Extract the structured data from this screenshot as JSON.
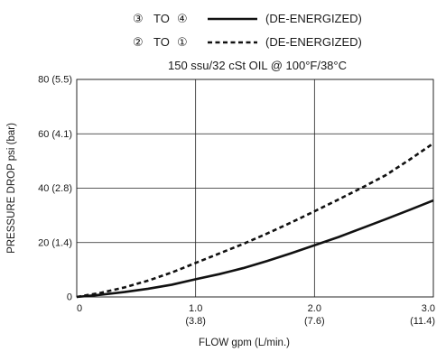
{
  "chart_data": {
    "type": "line",
    "title": "",
    "subtitle": "150 ssu/32 cSt OIL @ 100°F/38°C",
    "xlabel": "FLOW gpm (L/min.)",
    "ylabel": "PRESSURE DROP psi (bar)",
    "xlim": [
      0,
      3.0
    ],
    "ylim": [
      0,
      80
    ],
    "grid": true,
    "legend_placement": "top-center",
    "x_ticks": [
      {
        "value": 0,
        "label": "0",
        "sublabel": ""
      },
      {
        "value": 1.0,
        "label": "1.0",
        "sublabel": "(3.8)"
      },
      {
        "value": 2.0,
        "label": "2.0",
        "sublabel": "(7.6)"
      },
      {
        "value": 3.0,
        "label": "3.0",
        "sublabel": "(11.4)"
      }
    ],
    "y_ticks": [
      {
        "value": 0,
        "label": "0"
      },
      {
        "value": 20,
        "label": "20 (1.4)"
      },
      {
        "value": 40,
        "label": "40 (2.8)"
      },
      {
        "value": 60,
        "label": "60 (4.1)"
      },
      {
        "value": 80,
        "label": "80 (5.5)"
      }
    ],
    "series": [
      {
        "name": "(DE-ENERGIZED)",
        "route": [
          "③",
          "TO",
          "④"
        ],
        "style": "solid",
        "color": "#111111",
        "x": [
          0,
          0.2,
          0.4,
          0.6,
          0.8,
          1.0,
          1.2,
          1.4,
          1.6,
          1.8,
          2.0,
          2.2,
          2.4,
          2.6,
          2.8,
          3.0
        ],
        "y": [
          0,
          0.8,
          1.8,
          3.0,
          4.5,
          6.5,
          8.4,
          10.6,
          13.2,
          16.0,
          19.0,
          22.0,
          25.3,
          28.6,
          32.0,
          35.5
        ]
      },
      {
        "name": "(DE-ENERGIZED)",
        "route": [
          "②",
          "TO",
          "①"
        ],
        "style": "dashed",
        "color": "#111111",
        "x": [
          0,
          0.2,
          0.4,
          0.6,
          0.8,
          1.0,
          1.2,
          1.4,
          1.6,
          1.8,
          2.0,
          2.2,
          2.4,
          2.6,
          2.8,
          3.0
        ],
        "y": [
          0,
          1.5,
          3.5,
          6.0,
          9.0,
          12.5,
          16.0,
          19.5,
          23.3,
          27.3,
          31.5,
          35.8,
          40.2,
          44.8,
          50.5,
          56.5
        ]
      }
    ]
  }
}
